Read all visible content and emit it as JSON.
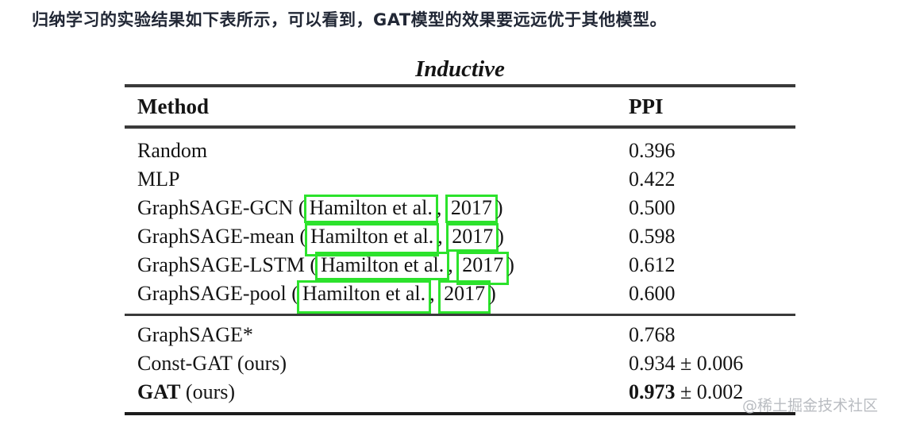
{
  "page": {
    "intro_text": "归纳学习的实验结果如下表所示，可以看到，GAT模型的效果要远远优于其他模型。",
    "watermark": "@稀土掘金技术社区"
  },
  "colors": {
    "citation_box_green": "#2ce22c",
    "watermark_gray": "#b9bcc1",
    "intro_text_dark": "#222836"
  },
  "table": {
    "title": "Inductive",
    "columns": {
      "method": "Method",
      "ppi": "PPI"
    },
    "rows_top": [
      {
        "method": "Random",
        "value": "0.396"
      },
      {
        "method": "MLP",
        "value": "0.422"
      },
      {
        "method_prefix": "GraphSAGE-GCN (",
        "citation_author": "Hamilton et al.",
        "citation_sep": ", ",
        "citation_year": "2017",
        "method_suffix": ")",
        "value": "0.500"
      },
      {
        "method_prefix": "GraphSAGE-mean (",
        "citation_author": "Hamilton et al.",
        "citation_sep": ", ",
        "citation_year": "2017",
        "method_suffix": ")",
        "value": "0.598"
      },
      {
        "method_prefix": "GraphSAGE-LSTM (",
        "citation_author": "Hamilton et al.",
        "citation_sep": ", ",
        "citation_year": "2017",
        "method_suffix": ")",
        "value": "0.612"
      },
      {
        "method_prefix": "GraphSAGE-pool (",
        "citation_author": "Hamilton et al.",
        "citation_sep": ", ",
        "citation_year": "2017",
        "method_suffix": ")",
        "value": "0.600"
      }
    ],
    "rows_bottom": [
      {
        "method": "GraphSAGE*",
        "value": "0.768"
      },
      {
        "method": "Const-GAT (ours)",
        "value": "0.934 ± 0.006"
      },
      {
        "method_bold": "GAT",
        "method_rest": " (ours)",
        "value_bold": "0.973",
        "value_rest": " ± 0.002"
      }
    ]
  }
}
